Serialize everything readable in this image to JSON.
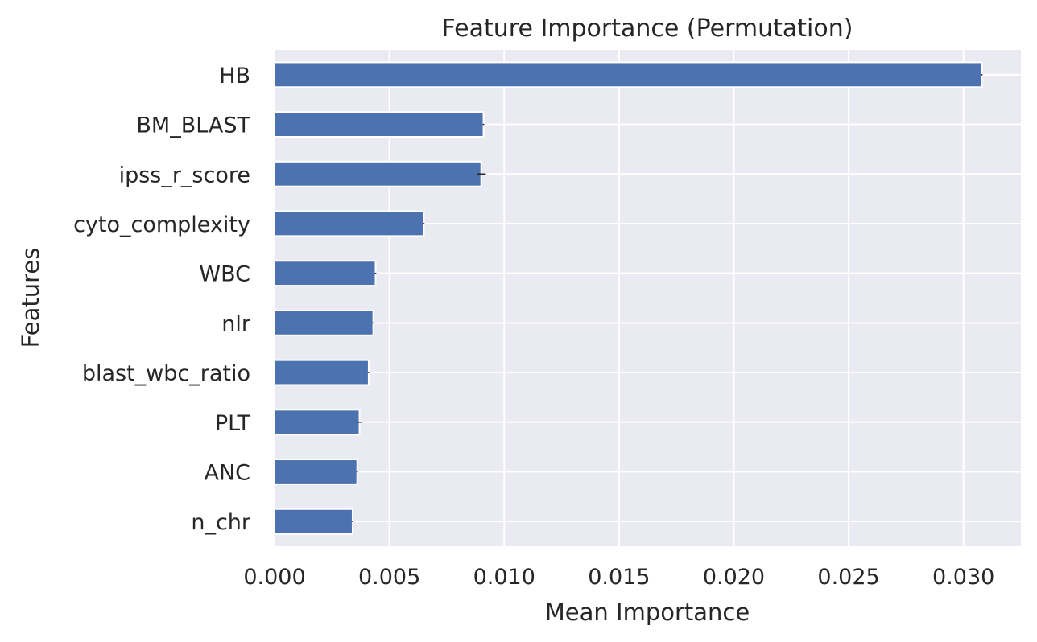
{
  "chart_data": {
    "type": "bar",
    "orientation": "horizontal",
    "title": "Feature Importance (Permutation)",
    "xlabel": "Mean Importance",
    "ylabel": "Features",
    "categories": [
      "HB",
      "BM_BLAST",
      "ipss_r_score",
      "cyto_complexity",
      "WBC",
      "nlr",
      "blast_wbc_ratio",
      "PLT",
      "ANC",
      "n_chr"
    ],
    "values": [
      0.0308,
      0.0091,
      0.009,
      0.0065,
      0.0044,
      0.0043,
      0.0041,
      0.0037,
      0.0036,
      0.0034
    ],
    "errors": [
      3e-05,
      3e-05,
      0.0002,
      3e-05,
      3e-05,
      3e-05,
      3e-05,
      0.0001,
      3e-05,
      3e-05
    ],
    "xlim": [
      0,
      0.0325
    ],
    "xticks": [
      0.0,
      0.005,
      0.01,
      0.015,
      0.02,
      0.025,
      0.03
    ],
    "xtick_labels": [
      "0.000",
      "0.005",
      "0.010",
      "0.015",
      "0.020",
      "0.025",
      "0.030"
    ],
    "grid": true,
    "colors": {
      "bar": "#4c72b0",
      "background": "#eaeaf2",
      "grid": "#ffffff",
      "text": "#262626",
      "error": "#262626"
    }
  }
}
